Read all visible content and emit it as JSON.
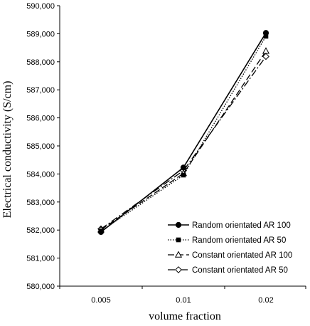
{
  "chart_data": {
    "type": "line",
    "title": "",
    "xlabel": "volume fraction",
    "ylabel": "Electrical conductivity (S/cm)",
    "categories": [
      "0.005",
      "0.01",
      "0.02"
    ],
    "ylim": [
      580000,
      590000
    ],
    "yticks": [
      580000,
      581000,
      582000,
      583000,
      584000,
      585000,
      586000,
      587000,
      588000,
      589000,
      590000
    ],
    "ytick_labels": [
      "580,000",
      "581,000",
      "582,000",
      "583,000",
      "584,000",
      "585,000",
      "586,000",
      "587,000",
      "588,000",
      "589,000",
      "590,000"
    ],
    "grid": false,
    "legend_position": "bottom-right",
    "series": [
      {
        "name": "Random orientated AR 100",
        "values": [
          581930,
          584230,
          589030
        ],
        "marker": "filled-circle",
        "dash": "solid"
      },
      {
        "name": "Random orientated AR 50",
        "values": [
          581960,
          583960,
          588910
        ],
        "marker": "filled-square",
        "dash": "dotted"
      },
      {
        "name": "Constant orientated AR 100",
        "values": [
          582010,
          584020,
          588380
        ],
        "marker": "open-triangle",
        "dash": "dashed"
      },
      {
        "name": "Constant orientated AR 50",
        "values": [
          582040,
          584120,
          588190
        ],
        "marker": "open-diamond",
        "dash": "dash-dot"
      }
    ]
  }
}
